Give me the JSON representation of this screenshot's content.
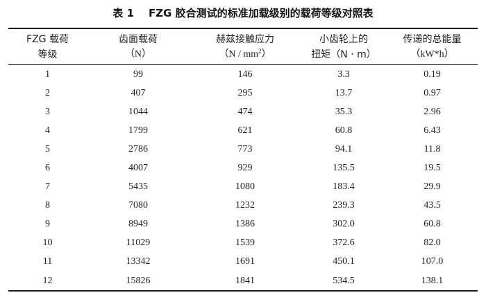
{
  "caption": "表 1    FZG 胶合测试的标准加载级别的载荷等级对照表",
  "headers": {
    "col1": {
      "line1": "FZG 载荷",
      "line2": "等级"
    },
    "col2": {
      "line1": "齿面载荷",
      "line2": "（N）"
    },
    "col3": {
      "line1": "赫兹接触应力",
      "line2_pre": "（N / mm",
      "line2_sup": "2",
      "line2_post": "）"
    },
    "col4": {
      "line1": "小齿轮上的",
      "line2": "扭矩（N · m）"
    },
    "col5": {
      "line1": "传递的总能量",
      "line2": "（kW*h）"
    }
  },
  "rows": [
    [
      "1",
      "99",
      "146",
      "3.3",
      "0.19"
    ],
    [
      "2",
      "407",
      "295",
      "13.7",
      "0.97"
    ],
    [
      "3",
      "1044",
      "474",
      "35.3",
      "2.96"
    ],
    [
      "4",
      "1799",
      "621",
      "60.8",
      "6.43"
    ],
    [
      "5",
      "2786",
      "773",
      "94.1",
      "11.8"
    ],
    [
      "6",
      "4007",
      "929",
      "135.5",
      "19.5"
    ],
    [
      "7",
      "5435",
      "1080",
      "183.4",
      "29.9"
    ],
    [
      "8",
      "7080",
      "1232",
      "239.3",
      "43.5"
    ],
    [
      "9",
      "8949",
      "1386",
      "302.0",
      "60.8"
    ],
    [
      "10",
      "11029",
      "1539",
      "372.6",
      "82.0"
    ],
    [
      "11",
      "13342",
      "1691",
      "450.1",
      "107.0"
    ],
    [
      "12",
      "15826",
      "1841",
      "534.5",
      "138.1"
    ]
  ]
}
